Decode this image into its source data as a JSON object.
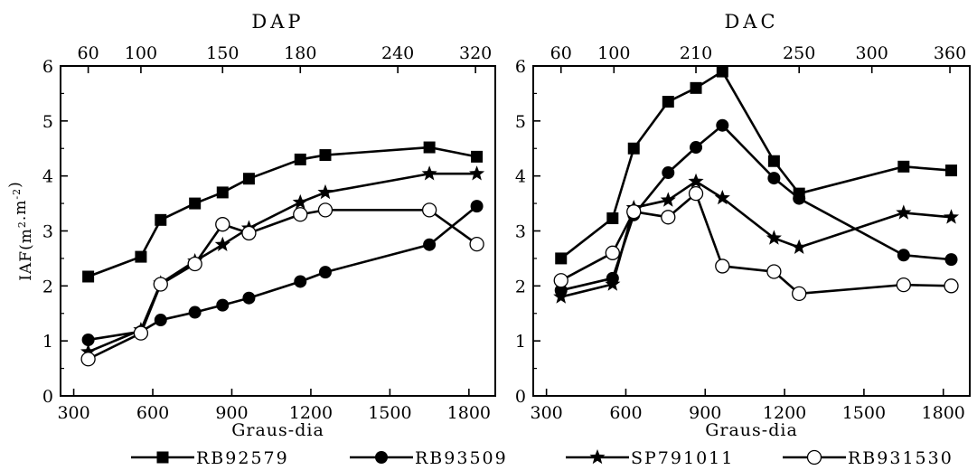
{
  "chart_data": [
    {
      "type": "line",
      "top_title": "DAP",
      "top_ticks": [
        "60",
        "100",
        "150",
        "180",
        "240",
        "320"
      ],
      "top_tick_x": [
        355,
        555,
        865,
        1160,
        1530,
        1825
      ],
      "xlabel": "Graus-dia",
      "ylabel": "IAF(m",
      "ylabel_sup1": "2",
      "ylabel_mid": ".m",
      "ylabel_sup2": "-2",
      "ylabel_end": ")",
      "xlim": [
        250,
        1900
      ],
      "ylim": [
        0,
        6
      ],
      "xticks": [
        300,
        600,
        900,
        1200,
        1500,
        1800
      ],
      "yticks": [
        0,
        1,
        2,
        3,
        4,
        5,
        6
      ],
      "series": [
        {
          "name": "RB92579",
          "marker": "square",
          "x": [
            355,
            555,
            630,
            760,
            865,
            965,
            1160,
            1255,
            1650,
            1830
          ],
          "y": [
            2.17,
            2.53,
            3.2,
            3.5,
            3.7,
            3.95,
            4.3,
            4.38,
            4.52,
            4.35
          ]
        },
        {
          "name": "RB93509",
          "marker": "circle",
          "x": [
            355,
            555,
            630,
            760,
            865,
            965,
            1160,
            1255,
            1650,
            1830
          ],
          "y": [
            1.02,
            1.17,
            1.38,
            1.52,
            1.65,
            1.78,
            2.08,
            2.25,
            2.75,
            3.45
          ]
        },
        {
          "name": "SP791011",
          "marker": "star",
          "x": [
            355,
            555,
            630,
            760,
            865,
            965,
            1160,
            1255,
            1650,
            1830
          ],
          "y": [
            0.8,
            1.2,
            2.05,
            2.45,
            2.75,
            3.05,
            3.52,
            3.7,
            4.04,
            4.04
          ]
        },
        {
          "name": "RB931530",
          "marker": "open-circle",
          "x": [
            355,
            555,
            630,
            760,
            865,
            965,
            1160,
            1255,
            1650,
            1830
          ],
          "y": [
            0.67,
            1.14,
            2.03,
            2.4,
            3.12,
            2.96,
            3.3,
            3.38,
            3.38,
            2.76
          ]
        }
      ]
    },
    {
      "type": "line",
      "top_title": "DAC",
      "top_ticks": [
        "60",
        "100",
        "210",
        "250",
        "300",
        "360"
      ],
      "top_tick_x": [
        355,
        555,
        865,
        1255,
        1530,
        1825
      ],
      "xlabel": "Graus-dia",
      "xlim": [
        250,
        1900
      ],
      "ylim": [
        0,
        6
      ],
      "xticks": [
        300,
        600,
        900,
        1200,
        1500,
        1800
      ],
      "yticks": [
        0,
        1,
        2,
        3,
        4,
        5,
        6
      ],
      "series": [
        {
          "name": "RB92579",
          "marker": "square",
          "x": [
            355,
            550,
            630,
            760,
            865,
            965,
            1160,
            1255,
            1650,
            1830
          ],
          "y": [
            2.5,
            3.23,
            4.5,
            5.35,
            5.6,
            5.9,
            4.27,
            3.68,
            4.17,
            4.1
          ]
        },
        {
          "name": "RB93509",
          "marker": "circle",
          "x": [
            355,
            550,
            630,
            760,
            865,
            965,
            1160,
            1255,
            1650,
            1830
          ],
          "y": [
            1.92,
            2.14,
            3.29,
            4.06,
            4.52,
            4.92,
            3.96,
            3.59,
            2.56,
            2.48
          ]
        },
        {
          "name": "SP791011",
          "marker": "star",
          "x": [
            355,
            550,
            630,
            760,
            865,
            965,
            1160,
            1255,
            1650,
            1830
          ],
          "y": [
            1.8,
            2.03,
            3.42,
            3.56,
            3.9,
            3.6,
            2.87,
            2.7,
            3.33,
            3.25
          ]
        },
        {
          "name": "RB931530",
          "marker": "open-circle",
          "x": [
            355,
            550,
            630,
            760,
            865,
            965,
            1160,
            1255,
            1650,
            1830
          ],
          "y": [
            2.1,
            2.6,
            3.35,
            3.25,
            3.68,
            2.36,
            2.26,
            1.86,
            2.02,
            2.0
          ]
        }
      ]
    }
  ],
  "legend": {
    "position": "bottom",
    "items": [
      {
        "label": "RB92579",
        "marker": "square"
      },
      {
        "label": "RB93509",
        "marker": "circle"
      },
      {
        "label": "SP791011",
        "marker": "star"
      },
      {
        "label": "RB931530",
        "marker": "open-circle"
      }
    ]
  }
}
